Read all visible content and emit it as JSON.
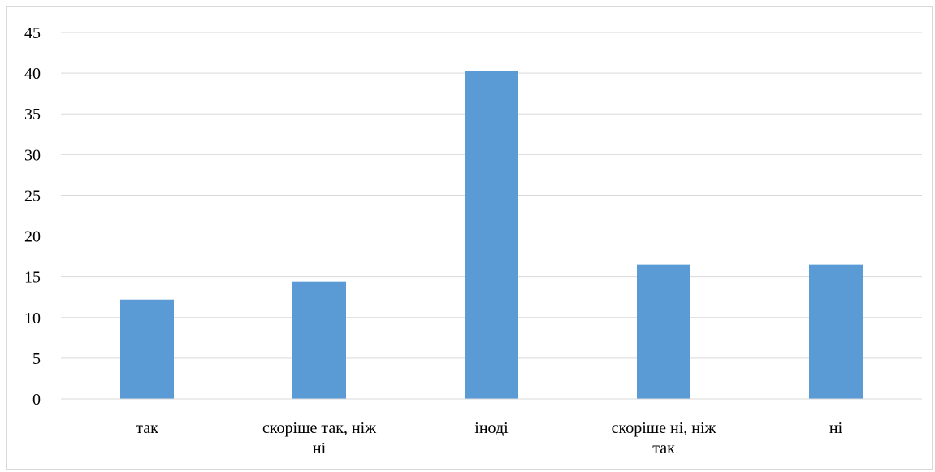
{
  "chart_data": {
    "type": "bar",
    "categories": [
      [
        "так"
      ],
      [
        "скоріше так, ніж",
        "ні"
      ],
      [
        "іноді"
      ],
      [
        "скоріше ні, ніж",
        "так"
      ],
      [
        "ні"
      ]
    ],
    "values": [
      12.2,
      14.4,
      40.3,
      16.5,
      16.5
    ],
    "ylim": [
      0,
      45
    ],
    "yticks": [
      "0",
      "5",
      "10",
      "15",
      "20",
      "25",
      "30",
      "35",
      "40",
      "45"
    ],
    "grid": true,
    "legend": "none",
    "colors": {
      "bar": "#5b9bd5",
      "grid": "#d9d9d9",
      "text": "#000000"
    }
  }
}
